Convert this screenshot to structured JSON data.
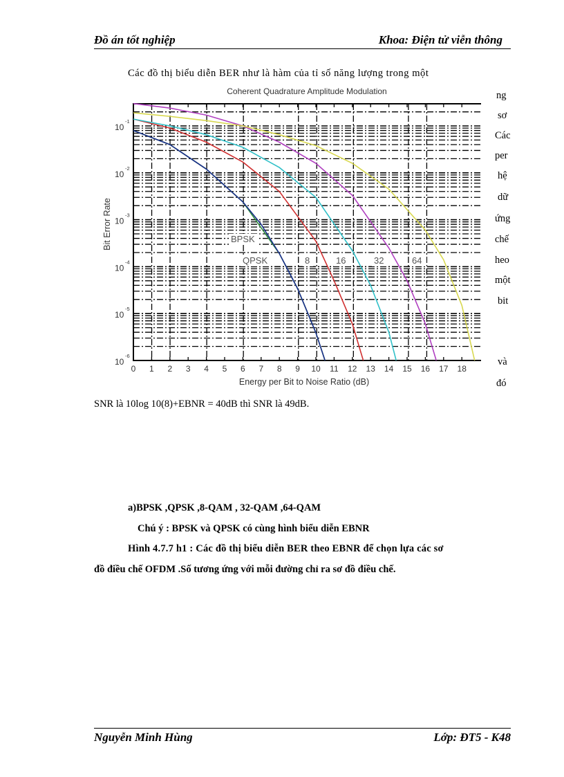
{
  "header": {
    "left": "Đồ án tốt nghiệp",
    "right": "Khoa: Điện tử viễn thông"
  },
  "body": {
    "intro_line": "Các đồ thị biểu diễn BER như là hàm của tỉ số năng lượng trong một",
    "right_fragments": [
      "ng",
      "sơ",
      "Các",
      "per",
      "hệ",
      "dữ",
      "ứng",
      "chế",
      "heo",
      "một",
      "bit",
      "và",
      "đó"
    ],
    "snr_line": "SNR là 10log 10(8)+EBNR = 40dB thì SNR là 49dB."
  },
  "caption": {
    "line1": "a)BPSK ,QPSK ,8-QAM , 32-QAM  ,64-QAM",
    "line2": "Chú ý : BPSK và QPSK có cùng hình biểu diễn EBNR",
    "line3": "Hình 4.7.7 h1 : Các đồ thị biểu diễn BER theo EBNR để chọn lựa các sơ",
    "line4": "đồ điều chế OFDM .Số tương ứng với mỗi đường chỉ ra sơ đồ điều chế."
  },
  "footer": {
    "left": "Nguyễn Minh Hùng",
    "right": "Lớp: ĐT5 - K48"
  },
  "chart_data": {
    "type": "line",
    "title": "Coherent Quadrature Amplitude Modulation",
    "xlabel": "Energy per Bit to Noise Ratio (dB)",
    "ylabel": "Bit Error Rate",
    "xlim": [
      0,
      19
    ],
    "ylim": [
      1e-06,
      0.3
    ],
    "yscale": "log",
    "grid": true,
    "x_ticks": [
      0,
      1,
      2,
      3,
      4,
      5,
      6,
      7,
      8,
      9,
      10,
      11,
      12,
      13,
      14,
      15,
      16,
      17,
      18
    ],
    "y_ticks": [
      "10^-1",
      "10^-2",
      "10^-3",
      "10^-4",
      "10^-5",
      "10^-6"
    ],
    "annotations": [
      "BPSK",
      "QPSK",
      "8",
      "16",
      "32",
      "64"
    ],
    "series": [
      {
        "name": "BPSK",
        "color": "#2e8b3c",
        "x": [
          0,
          2,
          4,
          6,
          8,
          9,
          10,
          10.5
        ],
        "y": [
          0.08,
          0.04,
          0.012,
          0.0024,
          0.00019,
          3.4e-05,
          3.9e-06,
          1e-06
        ]
      },
      {
        "name": "QPSK",
        "color": "#1a2f8a",
        "x": [
          0,
          2,
          4,
          6,
          7,
          8,
          9,
          10,
          10.5
        ],
        "y": [
          0.08,
          0.04,
          0.012,
          0.0024,
          0.0008,
          0.00019,
          3.4e-05,
          3.9e-06,
          1e-06
        ]
      },
      {
        "name": "8-QAM",
        "color": "#d03030",
        "x": [
          0,
          2,
          4,
          6,
          8,
          10,
          11,
          12,
          12.6
        ],
        "y": [
          0.14,
          0.09,
          0.045,
          0.017,
          0.004,
          0.00035,
          5e-05,
          6e-06,
          1e-06
        ]
      },
      {
        "name": "16-QAM",
        "color": "#30c0c8",
        "x": [
          0,
          2,
          4,
          6,
          8,
          10,
          12,
          13,
          14,
          14.4
        ],
        "y": [
          0.14,
          0.1,
          0.065,
          0.035,
          0.013,
          0.003,
          0.00022,
          4e-05,
          4e-06,
          1e-06
        ]
      },
      {
        "name": "32-QAM",
        "color": "#b040c0",
        "x": [
          0,
          2,
          4,
          6,
          8,
          10,
          12,
          14,
          15,
          16,
          16.6
        ],
        "y": [
          0.3,
          0.24,
          0.17,
          0.1,
          0.045,
          0.016,
          0.0033,
          0.00025,
          5e-05,
          6e-06,
          1e-06
        ]
      },
      {
        "name": "64-QAM",
        "color": "#d8d850",
        "x": [
          0,
          2,
          4,
          6,
          8,
          10,
          12,
          14,
          16,
          17,
          18,
          18.7
        ],
        "y": [
          0.19,
          0.16,
          0.13,
          0.1,
          0.065,
          0.038,
          0.016,
          0.0045,
          0.0006,
          0.00014,
          1.5e-05,
          1e-06
        ]
      }
    ]
  }
}
